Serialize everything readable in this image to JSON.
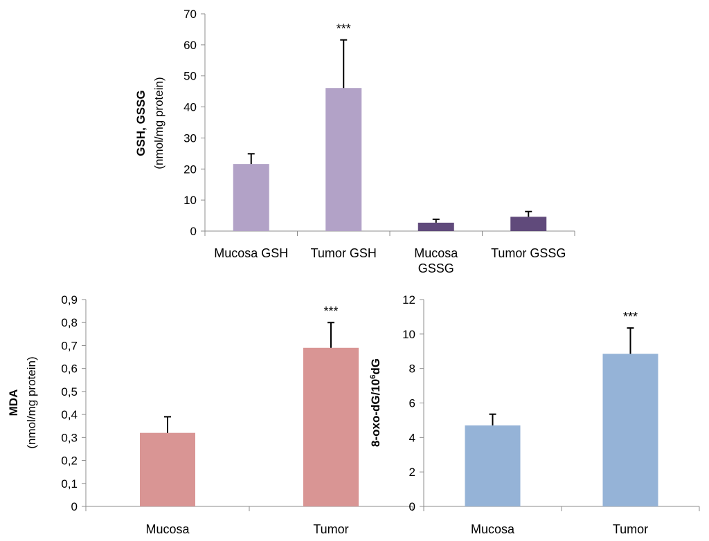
{
  "chart_data": [
    {
      "type": "bar",
      "categories": [
        [
          "Mucosa GSH"
        ],
        [
          "Tumor GSH"
        ],
        [
          "Mucosa",
          "GSSG"
        ],
        [
          "Tumor GSSG"
        ]
      ],
      "values": [
        21.6,
        46.1,
        2.7,
        4.6
      ],
      "errors": [
        3.3,
        15.5,
        1.1,
        1.7
      ],
      "significance": [
        "",
        "***",
        "",
        ""
      ],
      "colors": [
        "#b2a2c7",
        "#b2a2c7",
        "#604a7b",
        "#604a7b"
      ],
      "ylabel": "GSH, GSSG",
      "ylabel_unit": "(nmol/mg protein)",
      "ylim": [
        0,
        70
      ],
      "yticks": [
        0,
        10,
        20,
        30,
        40,
        50,
        60,
        70
      ],
      "ytick_labels": [
        "0",
        "10",
        "20",
        "30",
        "40",
        "50",
        "60",
        "70"
      ]
    },
    {
      "type": "bar",
      "categories": [
        [
          "Mucosa"
        ],
        [
          "Tumor"
        ]
      ],
      "values": [
        0.32,
        0.69
      ],
      "errors": [
        0.07,
        0.11
      ],
      "significance": [
        "",
        "***"
      ],
      "colors": [
        "#d99594",
        "#d99594"
      ],
      "ylabel": "MDA",
      "ylabel_unit": "(nmol/mg protein)",
      "ylim": [
        0,
        0.9
      ],
      "yticks": [
        0,
        0.1,
        0.2,
        0.3,
        0.4,
        0.5,
        0.6,
        0.7,
        0.8,
        0.9
      ],
      "ytick_labels": [
        "0",
        "0,1",
        "0,2",
        "0,3",
        "0,4",
        "0,5",
        "0,6",
        "0,7",
        "0,8",
        "0,9"
      ]
    },
    {
      "type": "bar",
      "categories": [
        [
          "Mucosa"
        ],
        [
          "Tumor"
        ]
      ],
      "values": [
        4.7,
        8.85
      ],
      "errors": [
        0.65,
        1.5
      ],
      "significance": [
        "",
        "***"
      ],
      "colors": [
        "#95b3d7",
        "#95b3d7"
      ],
      "ylabel_main": "8-oxo-dG/10",
      "ylabel_sup": "6",
      "ylabel_tail": "dG",
      "ylim": [
        0,
        12
      ],
      "yticks": [
        0,
        2,
        4,
        6,
        8,
        10,
        12
      ],
      "ytick_labels": [
        "0",
        "2",
        "4",
        "6",
        "8",
        "10",
        "12"
      ]
    }
  ]
}
